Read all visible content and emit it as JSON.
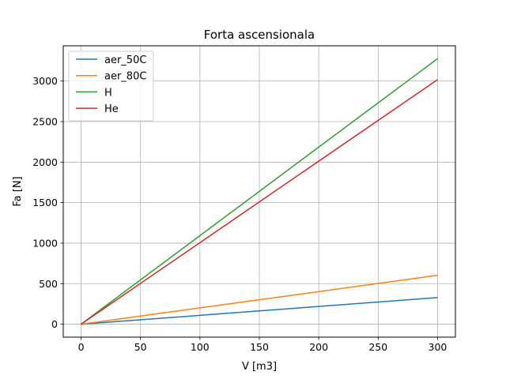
{
  "chart_data": {
    "type": "line",
    "title": "Forta ascensionala",
    "xlabel": "V [m3]",
    "ylabel": "Fa [N]",
    "xlim": [
      -15,
      315
    ],
    "ylim": [
      -160,
      3435
    ],
    "xticks": [
      0,
      50,
      100,
      150,
      200,
      250,
      300
    ],
    "yticks": [
      0,
      500,
      1000,
      1500,
      2000,
      2500,
      3000
    ],
    "grid": true,
    "legend_position": "top-left",
    "series": [
      {
        "name": "aer_50C",
        "color": "#1f77b4",
        "x": [
          0,
          300
        ],
        "y": [
          0,
          328
        ]
      },
      {
        "name": "aer_80C",
        "color": "#ff7f0e",
        "x": [
          0,
          300
        ],
        "y": [
          0,
          603
        ]
      },
      {
        "name": "H",
        "color": "#2ca02c",
        "x": [
          0,
          300
        ],
        "y": [
          0,
          3277
        ]
      },
      {
        "name": "He",
        "color": "#d62728",
        "x": [
          0,
          300
        ],
        "y": [
          0,
          3017
        ]
      }
    ]
  }
}
